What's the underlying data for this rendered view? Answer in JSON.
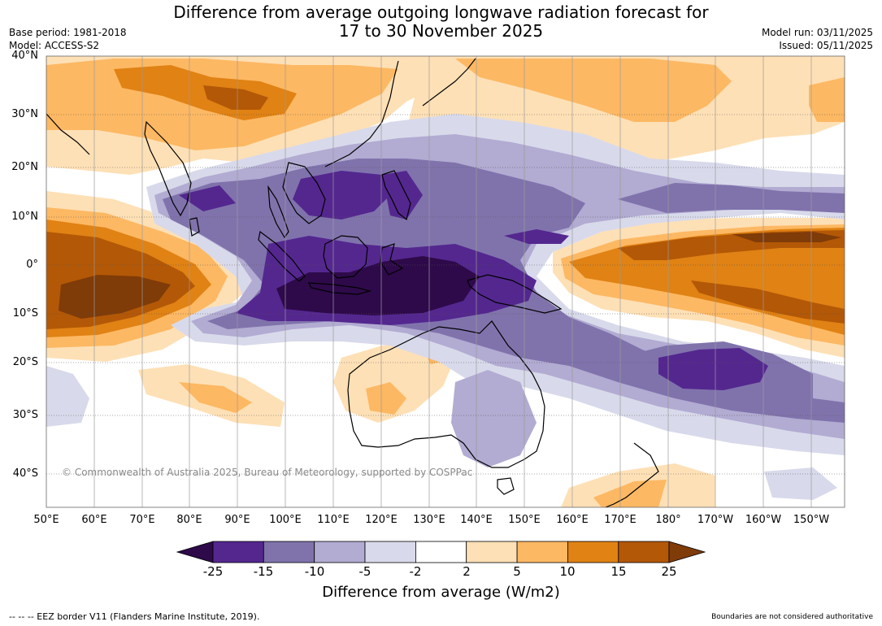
{
  "title_line1": "Difference from average outgoing longwave radiation forecast for",
  "title_line2": "17 to 30 November 2025",
  "base_period": "Base period: 1981-2018",
  "model": "Model: ACCESS-S2",
  "model_run": "Model run: 03/11/2025",
  "issued": "Issued: 05/11/2025",
  "lat_labels": [
    "40°N",
    "30°N",
    "20°N",
    "10°N",
    "0°",
    "10°S",
    "20°S",
    "30°S",
    "40°S"
  ],
  "lon_labels": [
    "50°E",
    "60°E",
    "70°E",
    "80°E",
    "90°E",
    "100°E",
    "110°E",
    "120°E",
    "130°E",
    "140°E",
    "150°E",
    "160°E",
    "170°E",
    "180°",
    "170°W",
    "160°W",
    "150°W"
  ],
  "copyright": "© Commonwealth of Australia 2025, Bureau of Meteorology, supported by COSPPac",
  "colorbar": {
    "ticks": [
      "-25",
      "-15",
      "-10",
      "-5",
      "-2",
      "2",
      "5",
      "10",
      "15",
      "25"
    ],
    "colors": {
      "lt_-25": "#2e0a4a",
      "-25_-15": "#54278f",
      "-15_-10": "#8073ac",
      "-10_-5": "#b2abd2",
      "-5_-2": "#d8daeb",
      "-2_2": "#ffffff",
      "2_5": "#fee0b6",
      "5_10": "#fdb863",
      "10_15": "#e08214",
      "15_25": "#b35806",
      "gt_25": "#7f3b08"
    },
    "label": "Difference from average (W/m2)"
  },
  "footer_left": "--  --  -- EEZ border V11 (Flanders Marine Institute, 2019).",
  "footer_right": "Boundaries are not considered authoritative"
}
